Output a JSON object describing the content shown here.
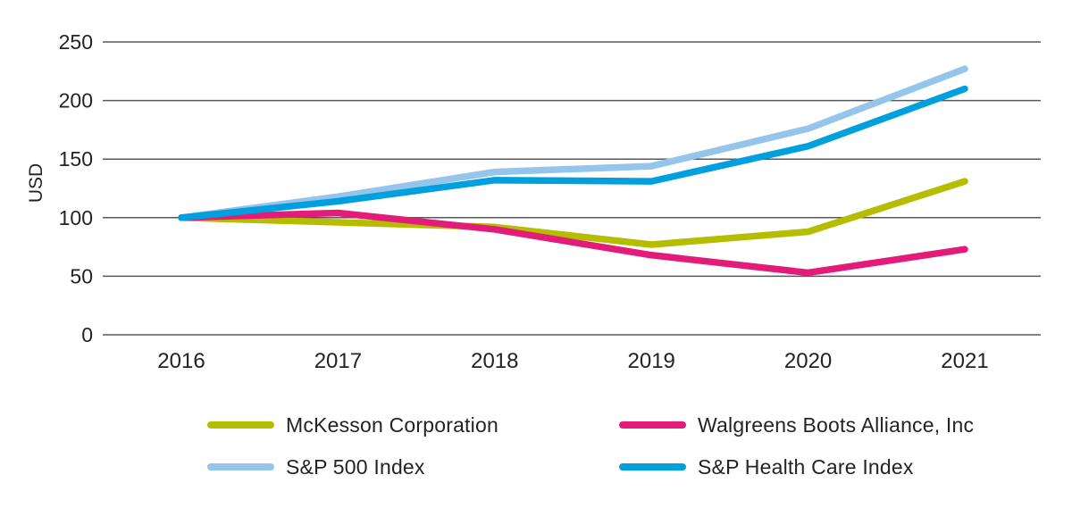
{
  "chart_data": {
    "type": "line",
    "title": "",
    "xlabel": "",
    "ylabel": "USD",
    "categories": [
      "2016",
      "2017",
      "2018",
      "2019",
      "2020",
      "2021"
    ],
    "ylim": [
      0,
      250
    ],
    "yticks": [
      0,
      50,
      100,
      150,
      200,
      250
    ],
    "grid": "horizontal",
    "legend_position": "bottom",
    "grid_color": "#58585a",
    "text_color": "#262223",
    "series": [
      {
        "name": "McKesson Corporation",
        "color": "#b5bd00",
        "values": [
          100,
          96,
          92,
          77,
          88,
          131
        ]
      },
      {
        "name": "Walgreens Boots Alliance, Inc",
        "color": "#e31c79",
        "values": [
          100,
          104,
          90,
          68,
          53,
          73
        ]
      },
      {
        "name": "S&P 500 Index",
        "color": "#95c5ea",
        "values": [
          100,
          118,
          139,
          144,
          176,
          227
        ]
      },
      {
        "name": "S&P Health Care Index",
        "color": "#00a0df",
        "values": [
          100,
          114,
          132,
          131,
          161,
          210
        ]
      }
    ]
  }
}
